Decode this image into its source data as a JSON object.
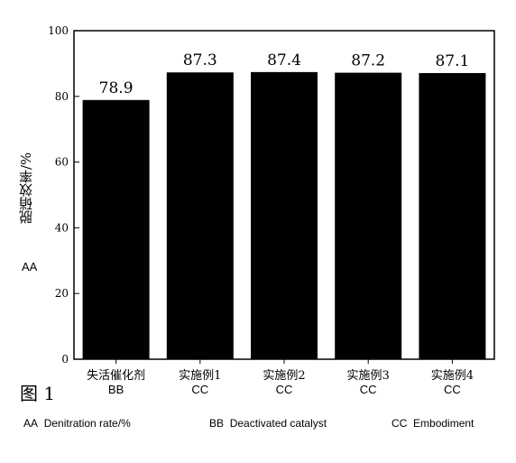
{
  "chart_data": {
    "type": "bar",
    "categories": [
      "失活催化剂",
      "实施例1",
      "实施例2",
      "实施例3",
      "实施例4"
    ],
    "category_tags": [
      "BB",
      "CC",
      "CC",
      "CC",
      "CC"
    ],
    "values": [
      78.9,
      87.3,
      87.4,
      87.2,
      87.1
    ],
    "value_labels": [
      "78.9",
      "87.3",
      "87.4",
      "87.2",
      "87.1"
    ],
    "ylabel": "脱硝效率/%",
    "ylabel_tag": "AA",
    "ylim": [
      0,
      100
    ],
    "yticks": [
      0,
      20,
      40,
      60,
      80,
      100
    ],
    "bar_color": "#000000",
    "grid": false
  },
  "figure_label": "图 1",
  "legend": [
    {
      "key": "AA",
      "text": "Denitration rate/%"
    },
    {
      "key": "BB",
      "text": "Deactivated catalyst"
    },
    {
      "key": "CC",
      "text": "Embodiment"
    }
  ]
}
